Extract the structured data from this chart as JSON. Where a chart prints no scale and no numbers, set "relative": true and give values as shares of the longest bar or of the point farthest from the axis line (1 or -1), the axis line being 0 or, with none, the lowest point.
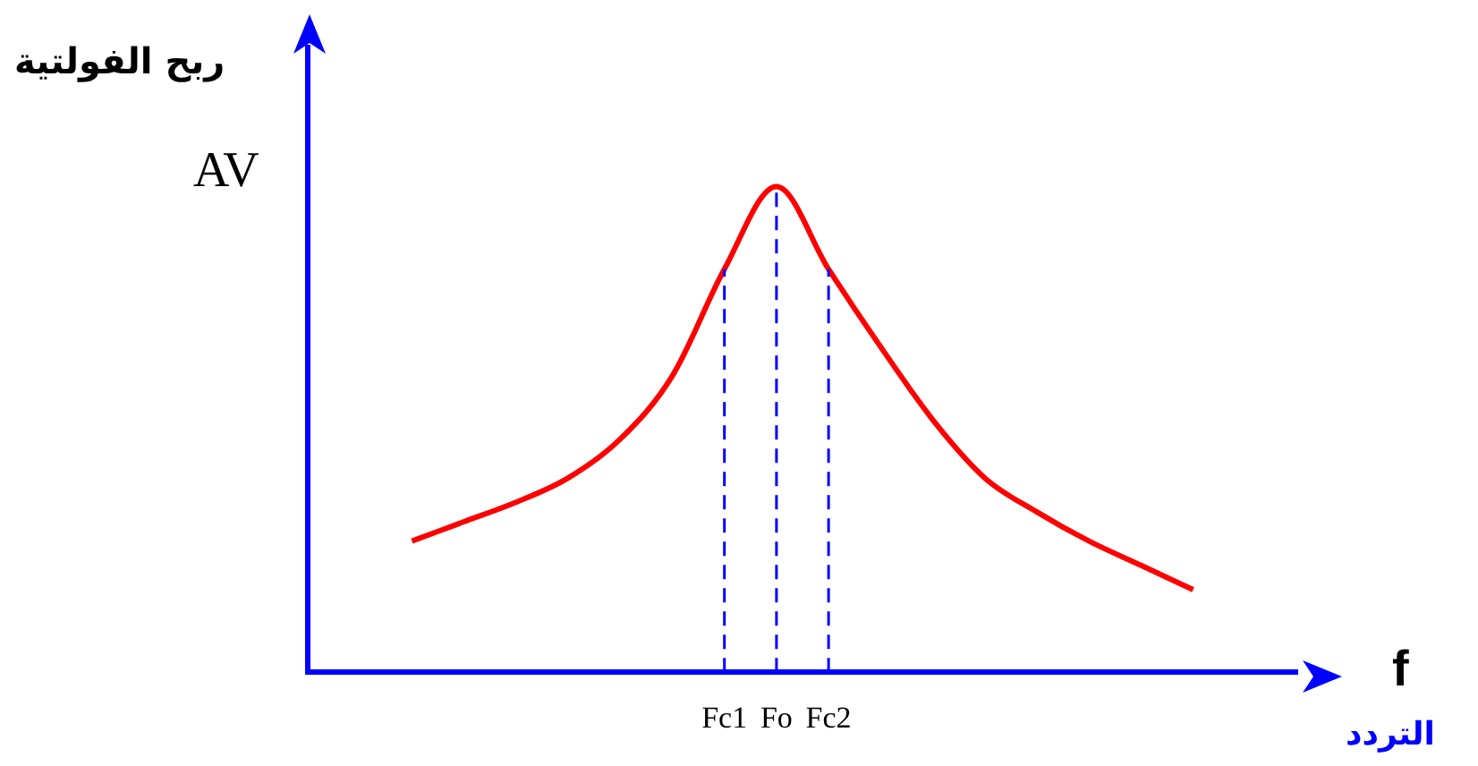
{
  "chart_data": {
    "type": "line",
    "relative": true,
    "ylabel": "ربح الفولتية",
    "xlabel": "التردد",
    "annotations": [
      "AV",
      "f"
    ],
    "categories": [
      null,
      null,
      null,
      null,
      null,
      null,
      null,
      null,
      "Fc1",
      "Fo",
      "Fc2",
      null,
      null,
      null,
      null,
      null,
      null,
      null,
      null,
      null
    ],
    "series": [
      {
        "color": "#ff0000",
        "values": [
          null,
          null,
          0.27,
          0.31,
          0.35,
          0.4,
          0.48,
          0.61,
          0.83,
          1,
          0.83,
          0.67,
          0.52,
          0.4,
          0.33,
          0.27,
          0.22,
          0.17,
          null,
          null
        ]
      }
    ],
    "ref_lines": [
      {
        "axis": "x",
        "value": "Fc1",
        "color": "#0000ff",
        "line_style": "dashed"
      },
      {
        "axis": "x",
        "value": "Fo",
        "color": "#0000ff",
        "line_style": "dashed"
      },
      {
        "axis": "x",
        "value": "Fc2",
        "color": "#0000ff",
        "line_style": "dashed"
      }
    ],
    "marker": "none",
    "line_style": "solid",
    "grid": false,
    "legend": false
  }
}
